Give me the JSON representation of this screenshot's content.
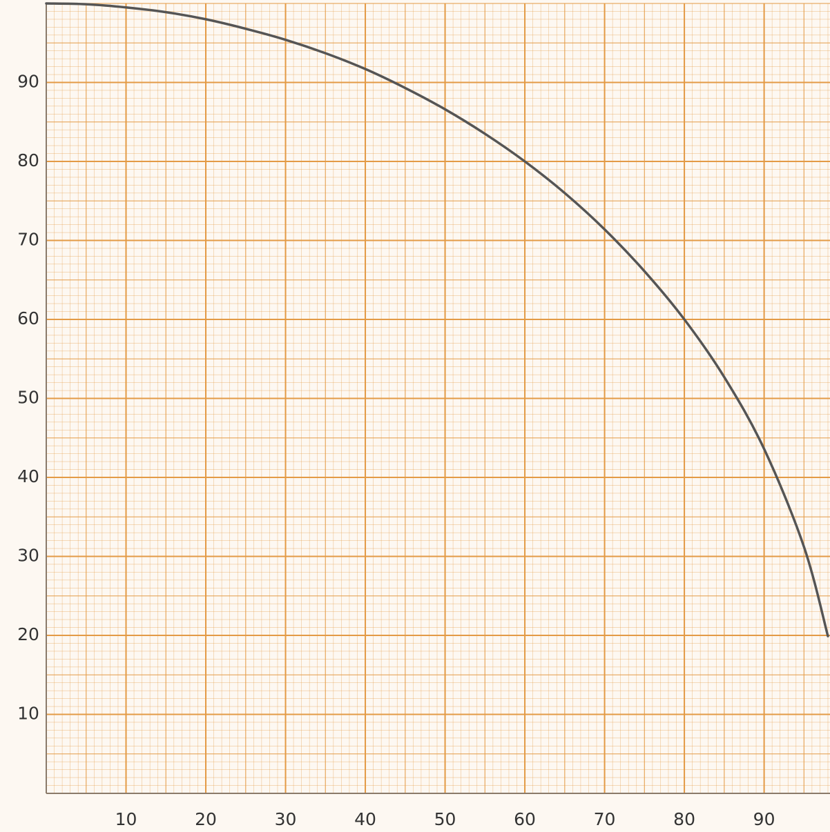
{
  "chart_data": {
    "type": "line",
    "x": [
      0,
      5,
      10,
      15,
      20,
      25,
      30,
      35,
      40,
      45,
      50,
      55,
      60,
      65,
      70,
      75,
      80,
      85,
      90,
      95,
      98
    ],
    "series": [
      {
        "color": "#555555",
        "values": [
          100,
          99.9,
          99.5,
          98.9,
          98,
          96.8,
          95.4,
          93.7,
          91.7,
          89.3,
          86.6,
          83.5,
          80,
          76,
          71.4,
          66.1,
          60,
          52.7,
          43.6,
          31.2,
          19.9
        ]
      }
    ],
    "xlim": [
      0,
      98
    ],
    "ylim": [
      0,
      100
    ],
    "xticks": [
      10,
      20,
      30,
      40,
      50,
      60,
      70,
      80,
      90
    ],
    "yticks": [
      10,
      20,
      30,
      40,
      50,
      60,
      70,
      80,
      90
    ],
    "grid": true,
    "grid_color": "#e39a45"
  }
}
